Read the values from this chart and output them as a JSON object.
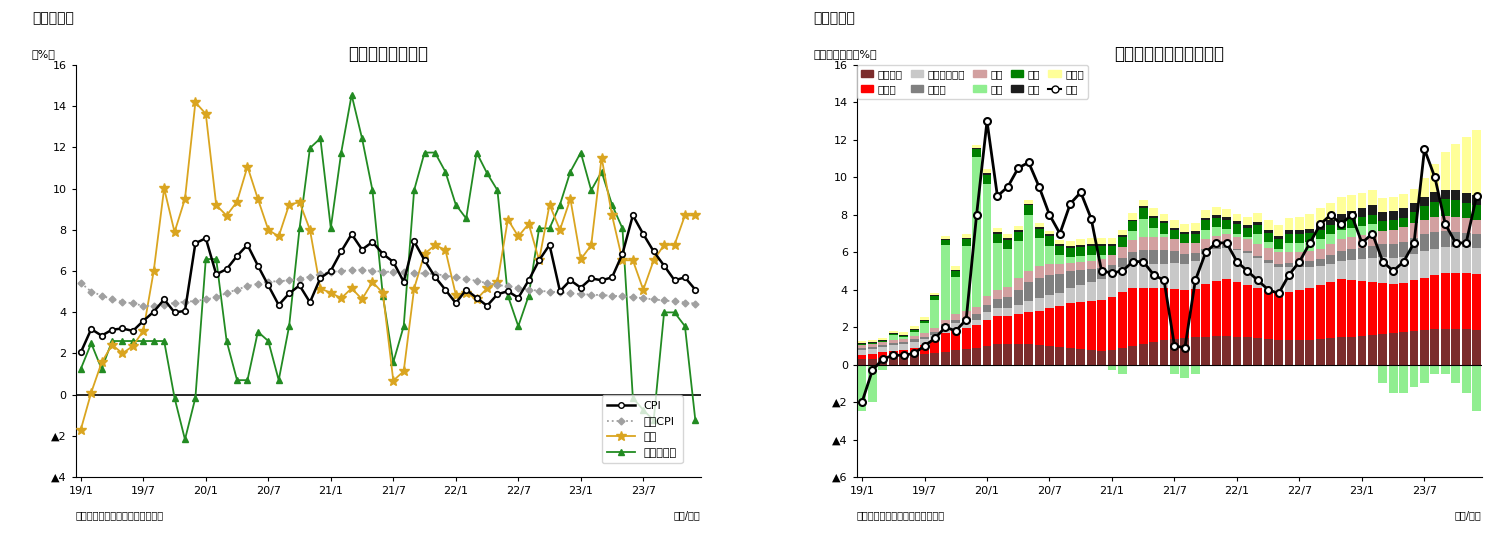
{
  "chart1_title": "消費者物価上昇率",
  "chart1_label": "（図表１）",
  "chart1_ylabel": "（%）",
  "chart1_source": "（資料）インド統計・計画実施省",
  "chart1_xlabel": "（年/月）",
  "chart1_ylim": [
    -4,
    16
  ],
  "chart1_ytick_labels": [
    "▲4",
    "▲2",
    "0",
    "2",
    "4",
    "6",
    "8",
    "10",
    "12",
    "14",
    "16"
  ],
  "chart2_title": "食品価格指数の要因分解",
  "chart2_label": "（図表２）",
  "chart2_ylabel": "（前年同月比、%）",
  "chart2_source": "（資料）インド統計・計画実施省",
  "chart2_xlabel": "（年/月）",
  "chart2_ylim": [
    -6,
    16
  ],
  "chart2_ytick_labels": [
    "▲6",
    "▲4",
    "▲2",
    "0",
    "2",
    "4",
    "6",
    "8",
    "10",
    "12",
    "14",
    "16"
  ],
  "xtick_labels": [
    "19/1",
    "19/7",
    "20/1",
    "20/7",
    "21/1",
    "21/7",
    "22/1",
    "22/7",
    "23/1",
    "23/7"
  ],
  "cpi": [
    2.05,
    3.18,
    2.86,
    3.15,
    3.21,
    3.09,
    3.58,
    4.02,
    4.62,
    3.99,
    4.06,
    7.35,
    7.59,
    5.84,
    6.09,
    6.73,
    7.27,
    6.26,
    5.3,
    4.35,
    4.91,
    5.3,
    4.48,
    5.66,
    6.01,
    6.95,
    7.79,
    7.04,
    7.41,
    6.83,
    6.44,
    5.48,
    7.44,
    6.52,
    5.72,
    5.09,
    4.44,
    5.09,
    4.7,
    4.31,
    4.87,
    5.02,
    4.7,
    5.55,
    6.52,
    7.27,
    5.02,
    5.55,
    5.19,
    5.64,
    5.55,
    5.69,
    6.83,
    8.7,
    7.79,
    6.95,
    6.26,
    5.55,
    5.69,
    5.09
  ],
  "core_cpi": [
    5.42,
    5.0,
    4.81,
    4.62,
    4.5,
    4.43,
    4.31,
    4.3,
    4.37,
    4.45,
    4.5,
    4.55,
    4.62,
    4.72,
    4.93,
    5.1,
    5.27,
    5.38,
    5.49,
    5.5,
    5.55,
    5.63,
    5.72,
    5.85,
    5.96,
    6.0,
    6.04,
    6.07,
    6.01,
    5.97,
    5.96,
    5.94,
    5.9,
    5.88,
    5.85,
    5.78,
    5.7,
    5.62,
    5.52,
    5.41,
    5.33,
    5.25,
    5.18,
    5.1,
    5.04,
    5.0,
    4.96,
    4.92,
    4.88,
    4.85,
    4.83,
    4.8,
    4.77,
    4.73,
    4.68,
    4.62,
    4.57,
    4.52,
    4.47,
    4.42
  ],
  "food": [
    -1.7,
    0.1,
    1.56,
    2.42,
    2.0,
    2.36,
    3.1,
    6.0,
    10.01,
    7.89,
    9.5,
    14.19,
    13.63,
    9.2,
    8.69,
    9.37,
    11.07,
    9.5,
    8.0,
    7.68,
    9.22,
    9.34,
    8.0,
    5.15,
    4.94,
    4.68,
    5.16,
    4.63,
    5.47,
    4.93,
    0.68,
    1.13,
    5.15,
    6.84,
    7.25,
    7.03,
    4.85,
    4.94,
    4.63,
    5.16,
    5.47,
    8.5,
    7.68,
    8.29,
    6.52,
    9.22,
    8.0,
    9.5,
    6.57,
    7.25,
    11.51,
    8.7,
    6.52,
    6.52,
    5.09,
    6.52,
    7.27,
    7.27,
    8.7,
    8.7
  ],
  "fuel": [
    1.25,
    2.49,
    1.24,
    2.6,
    2.6,
    2.6,
    2.6,
    2.6,
    2.6,
    -0.16,
    -2.18,
    -0.16,
    6.58,
    6.58,
    2.6,
    0.7,
    0.7,
    3.05,
    2.6,
    0.7,
    3.32,
    8.07,
    11.97,
    12.44,
    8.09,
    11.75,
    14.55,
    12.44,
    9.92,
    4.8,
    1.57,
    3.32,
    9.92,
    11.75,
    11.75,
    10.82,
    9.22,
    8.55,
    11.75,
    10.75,
    9.92,
    4.8,
    3.32,
    4.8,
    8.07,
    8.07,
    9.22,
    10.82,
    11.75,
    9.92,
    10.82,
    9.22,
    8.07,
    -0.16,
    -0.75,
    -1.25,
    3.99,
    3.99,
    3.32,
    -1.25
  ],
  "grain": [
    0.3,
    0.3,
    0.35,
    0.4,
    0.45,
    0.5,
    0.55,
    0.6,
    0.7,
    0.8,
    0.85,
    0.9,
    1.0,
    1.1,
    1.1,
    1.1,
    1.1,
    1.05,
    1.0,
    0.95,
    0.9,
    0.85,
    0.8,
    0.75,
    0.8,
    0.9,
    1.0,
    1.1,
    1.2,
    1.3,
    1.35,
    1.4,
    1.45,
    1.5,
    1.55,
    1.55,
    1.5,
    1.45,
    1.4,
    1.35,
    1.3,
    1.3,
    1.3,
    1.3,
    1.35,
    1.4,
    1.45,
    1.5,
    1.55,
    1.6,
    1.65,
    1.7,
    1.75,
    1.8,
    1.85,
    1.9,
    1.9,
    1.9,
    1.9,
    1.85
  ],
  "meat": [
    0.2,
    0.25,
    0.3,
    0.35,
    0.35,
    0.4,
    0.5,
    0.7,
    1.0,
    1.1,
    1.1,
    1.2,
    1.4,
    1.5,
    1.5,
    1.6,
    1.7,
    1.8,
    2.0,
    2.2,
    2.4,
    2.5,
    2.6,
    2.7,
    2.8,
    3.0,
    3.1,
    3.0,
    2.9,
    2.8,
    2.7,
    2.6,
    2.6,
    2.8,
    2.9,
    3.0,
    2.9,
    2.8,
    2.7,
    2.6,
    2.5,
    2.6,
    2.7,
    2.8,
    2.9,
    3.0,
    3.1,
    3.0,
    2.9,
    2.8,
    2.7,
    2.6,
    2.6,
    2.7,
    2.8,
    2.9,
    3.0,
    3.0,
    3.0,
    3.0
  ],
  "milk": [
    0.3,
    0.3,
    0.3,
    0.3,
    0.3,
    0.3,
    0.3,
    0.3,
    0.3,
    0.3,
    0.3,
    0.3,
    0.4,
    0.4,
    0.4,
    0.5,
    0.6,
    0.7,
    0.7,
    0.7,
    0.8,
    0.9,
    1.0,
    1.1,
    1.2,
    1.3,
    1.3,
    1.3,
    1.3,
    1.3,
    1.4,
    1.4,
    1.5,
    1.6,
    1.7,
    1.7,
    1.7,
    1.7,
    1.6,
    1.5,
    1.4,
    1.3,
    1.2,
    1.1,
    1.0,
    1.0,
    1.0,
    1.1,
    1.2,
    1.3,
    1.4,
    1.4,
    1.4,
    1.4,
    1.4,
    1.4,
    1.4,
    1.4,
    1.4,
    1.4
  ],
  "oil": [
    0.1,
    0.1,
    0.1,
    0.1,
    0.1,
    0.15,
    0.15,
    0.15,
    0.15,
    0.2,
    0.25,
    0.3,
    0.4,
    0.5,
    0.6,
    0.8,
    1.0,
    1.1,
    1.1,
    1.0,
    0.9,
    0.8,
    0.7,
    0.6,
    0.5,
    0.5,
    0.6,
    0.7,
    0.7,
    0.7,
    0.6,
    0.5,
    0.4,
    0.3,
    0.2,
    0.15,
    0.1,
    0.1,
    0.1,
    0.15,
    0.2,
    0.25,
    0.3,
    0.35,
    0.4,
    0.45,
    0.5,
    0.55,
    0.6,
    0.65,
    0.7,
    0.75,
    0.8,
    0.85,
    0.9,
    0.9,
    0.85,
    0.8,
    0.75,
    0.7
  ],
  "fruit": [
    0.15,
    0.15,
    0.15,
    0.15,
    0.15,
    0.2,
    0.2,
    0.2,
    0.25,
    0.3,
    0.35,
    0.4,
    0.45,
    0.5,
    0.55,
    0.6,
    0.6,
    0.6,
    0.55,
    0.5,
    0.45,
    0.45,
    0.45,
    0.5,
    0.55,
    0.6,
    0.65,
    0.7,
    0.7,
    0.7,
    0.65,
    0.6,
    0.55,
    0.5,
    0.5,
    0.55,
    0.6,
    0.65,
    0.65,
    0.65,
    0.6,
    0.55,
    0.5,
    0.5,
    0.55,
    0.6,
    0.65,
    0.65,
    0.65,
    0.65,
    0.7,
    0.75,
    0.8,
    0.8,
    0.8,
    0.8,
    0.8,
    0.8,
    0.8,
    0.8
  ],
  "veg": [
    -2.5,
    -2.0,
    -0.3,
    0.3,
    0.1,
    0.2,
    0.5,
    1.5,
    4.0,
    2.0,
    3.5,
    8.0,
    6.0,
    2.5,
    2.0,
    2.0,
    3.0,
    1.5,
    1.0,
    0.5,
    0.3,
    0.3,
    0.3,
    0.2,
    -0.3,
    -0.5,
    0.5,
    1.0,
    0.5,
    0.2,
    -0.5,
    -0.7,
    -0.5,
    0.5,
    0.5,
    0.3,
    0.2,
    0.1,
    0.5,
    0.3,
    0.2,
    0.5,
    0.5,
    0.5,
    0.5,
    0.5,
    0.5,
    0.5,
    0.5,
    0.5,
    -1.0,
    -1.5,
    -1.5,
    -1.2,
    -1.0,
    -0.5,
    -0.5,
    -1.0,
    -1.5,
    -2.5
  ],
  "pulse": [
    0.05,
    0.05,
    0.05,
    0.05,
    0.1,
    0.1,
    0.15,
    0.2,
    0.25,
    0.3,
    0.35,
    0.4,
    0.5,
    0.5,
    0.5,
    0.5,
    0.5,
    0.5,
    0.5,
    0.5,
    0.5,
    0.5,
    0.5,
    0.5,
    0.5,
    0.5,
    0.5,
    0.55,
    0.55,
    0.55,
    0.5,
    0.5,
    0.5,
    0.5,
    0.5,
    0.5,
    0.5,
    0.5,
    0.5,
    0.5,
    0.5,
    0.5,
    0.5,
    0.5,
    0.5,
    0.5,
    0.5,
    0.5,
    0.5,
    0.5,
    0.5,
    0.5,
    0.5,
    0.6,
    0.7,
    0.8,
    0.9,
    0.9,
    0.8,
    0.8
  ],
  "sugar": [
    0.05,
    0.05,
    0.05,
    0.05,
    0.05,
    0.05,
    0.05,
    0.05,
    0.05,
    0.05,
    0.05,
    0.05,
    0.1,
    0.1,
    0.1,
    0.1,
    0.1,
    0.1,
    0.1,
    0.1,
    0.1,
    0.1,
    0.1,
    0.1,
    0.1,
    0.1,
    0.1,
    0.1,
    0.1,
    0.1,
    0.1,
    0.1,
    0.15,
    0.15,
    0.15,
    0.15,
    0.15,
    0.15,
    0.15,
    0.15,
    0.15,
    0.2,
    0.2,
    0.2,
    0.25,
    0.3,
    0.35,
    0.4,
    0.45,
    0.5,
    0.5,
    0.5,
    0.5,
    0.5,
    0.5,
    0.5,
    0.5,
    0.5,
    0.5,
    0.5
  ],
  "spice": [
    0.1,
    0.1,
    0.1,
    0.1,
    0.15,
    0.15,
    0.15,
    0.15,
    0.15,
    0.2,
    0.2,
    0.2,
    0.2,
    0.2,
    0.2,
    0.2,
    0.2,
    0.2,
    0.2,
    0.2,
    0.25,
    0.3,
    0.3,
    0.3,
    0.3,
    0.3,
    0.35,
    0.35,
    0.4,
    0.4,
    0.4,
    0.4,
    0.4,
    0.4,
    0.4,
    0.4,
    0.4,
    0.45,
    0.5,
    0.55,
    0.6,
    0.65,
    0.7,
    0.8,
    0.9,
    0.9,
    0.9,
    0.85,
    0.8,
    0.8,
    0.75,
    0.75,
    0.75,
    0.75,
    1.0,
    1.5,
    2.0,
    2.5,
    3.0,
    3.5
  ],
  "food_index": [
    -2.0,
    -0.3,
    0.3,
    0.5,
    0.5,
    0.6,
    1.0,
    1.4,
    2.0,
    1.8,
    2.4,
    8.0,
    13.0,
    9.0,
    9.5,
    10.5,
    10.8,
    9.5,
    8.0,
    7.0,
    8.6,
    9.2,
    7.8,
    5.0,
    4.9,
    5.0,
    5.5,
    5.5,
    4.8,
    4.5,
    1.0,
    0.9,
    4.5,
    6.0,
    6.5,
    6.5,
    5.5,
    5.0,
    4.5,
    4.0,
    3.8,
    4.8,
    5.5,
    6.5,
    7.5,
    8.0,
    7.5,
    8.0,
    6.5,
    7.0,
    5.5,
    5.0,
    5.5,
    6.5,
    11.5,
    10.0,
    7.5,
    6.5,
    6.5,
    9.0
  ],
  "grain_color": "#7B2C2C",
  "meat_color": "#FF0000",
  "milk_color": "#C8C8C8",
  "oil_color": "#808080",
  "fruit_color": "#D2A0A0",
  "veg_color": "#90EE90",
  "pulse_color": "#008000",
  "sugar_color": "#1C1C1C",
  "spice_color": "#FFFF99",
  "cpi_color": "#000000",
  "core_color": "#A0A0A0",
  "food_color": "#DAA520",
  "fuel_color": "#228B22"
}
